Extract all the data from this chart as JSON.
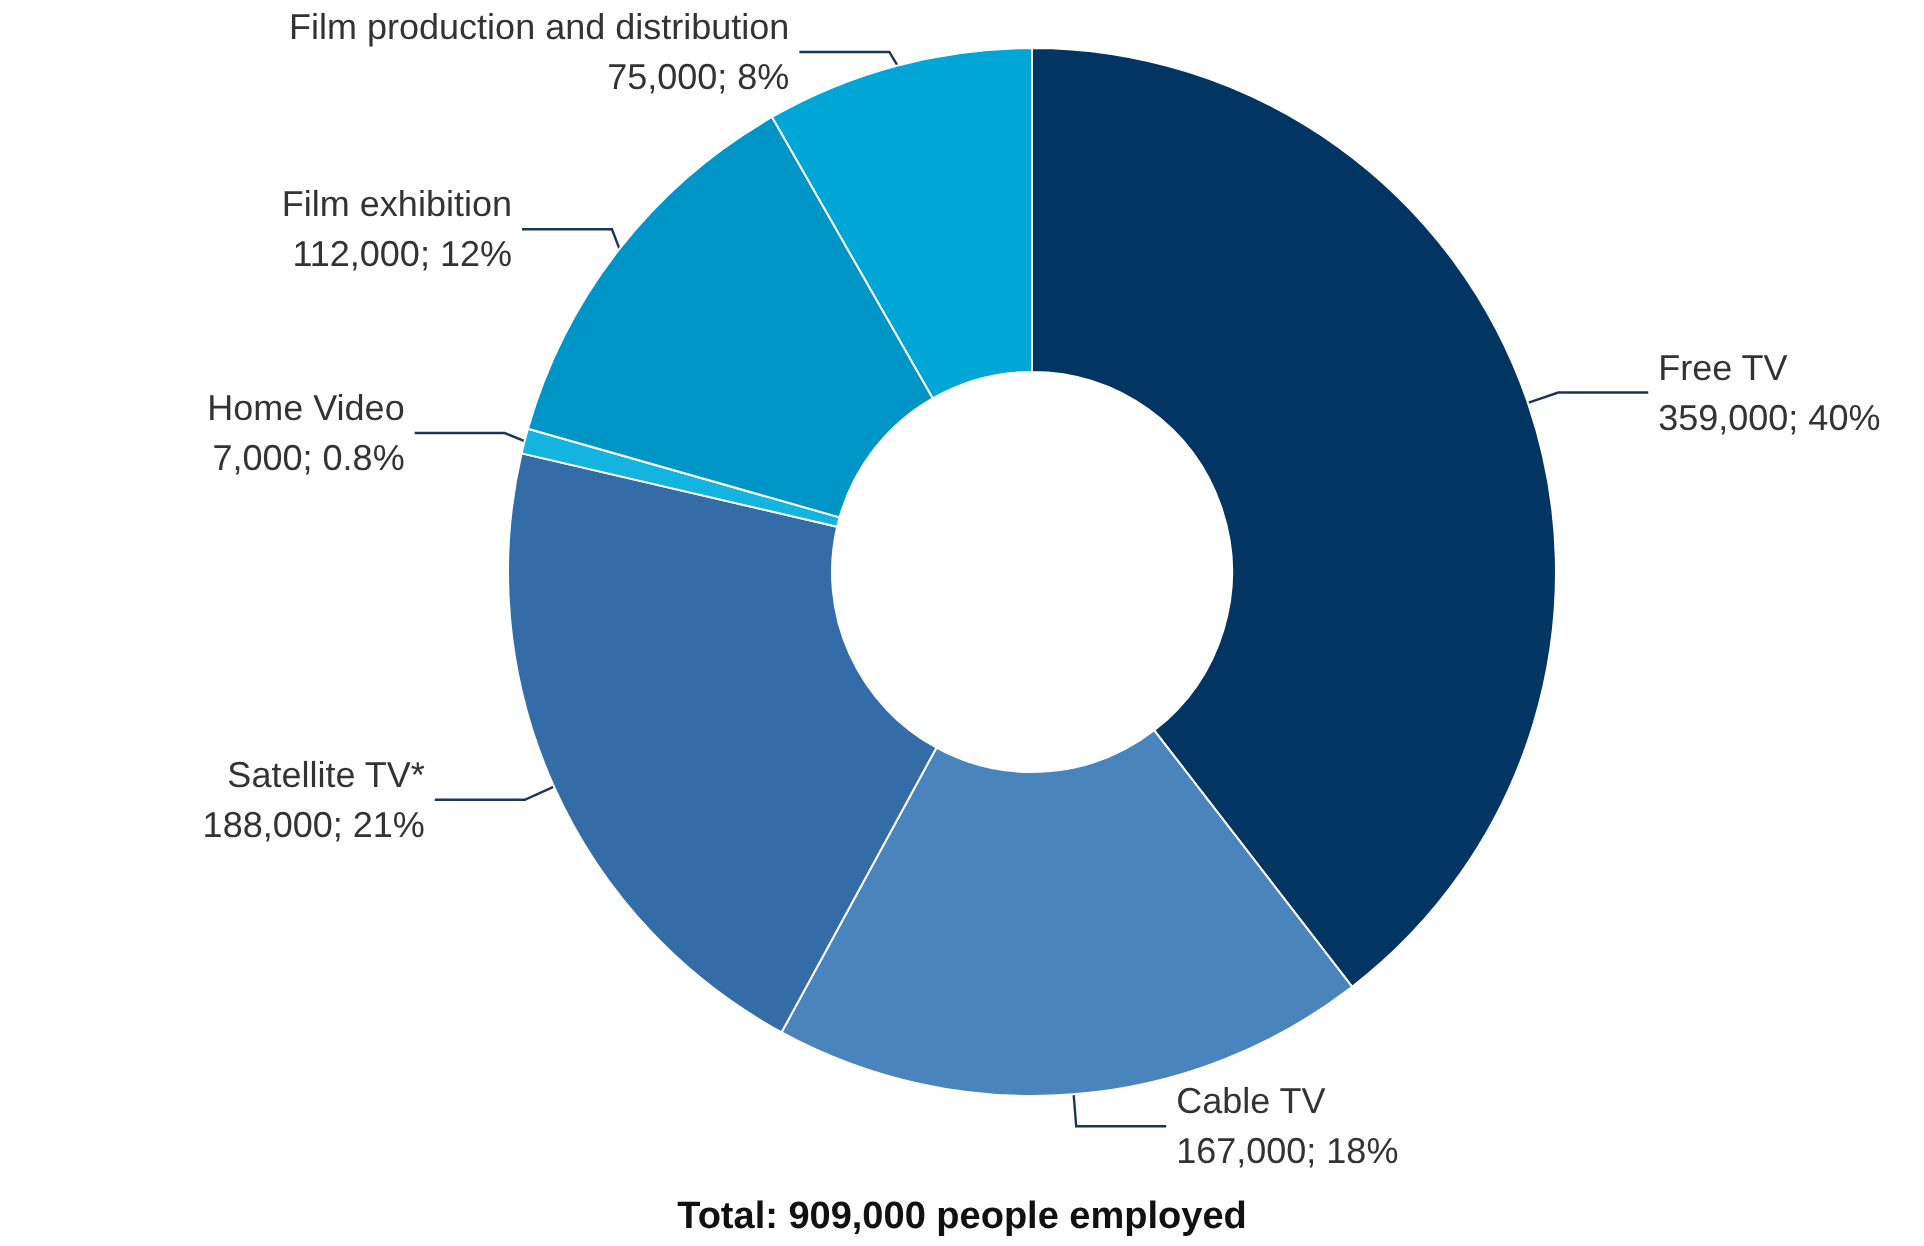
{
  "chart_data": {
    "type": "donut",
    "title": "Total: 909,000 people employed",
    "categories": [
      "Free TV",
      "Cable TV",
      "Satellite TV*",
      "Home Video",
      "Film exhibition",
      "Film production and distribution"
    ],
    "values": [
      359000,
      167000,
      188000,
      7000,
      112000,
      75000
    ],
    "value_labels": [
      "359,000; 40%",
      "167,000; 18%",
      "188,000; 21%",
      "7,000; 0.8%",
      "112,000; 12%",
      "75,000; 8%"
    ],
    "colors": [
      "#033563",
      "#4a84bc",
      "#336ca6",
      "#13b4e0",
      "#0095c7",
      "#00a6d6"
    ],
    "legend": false
  }
}
